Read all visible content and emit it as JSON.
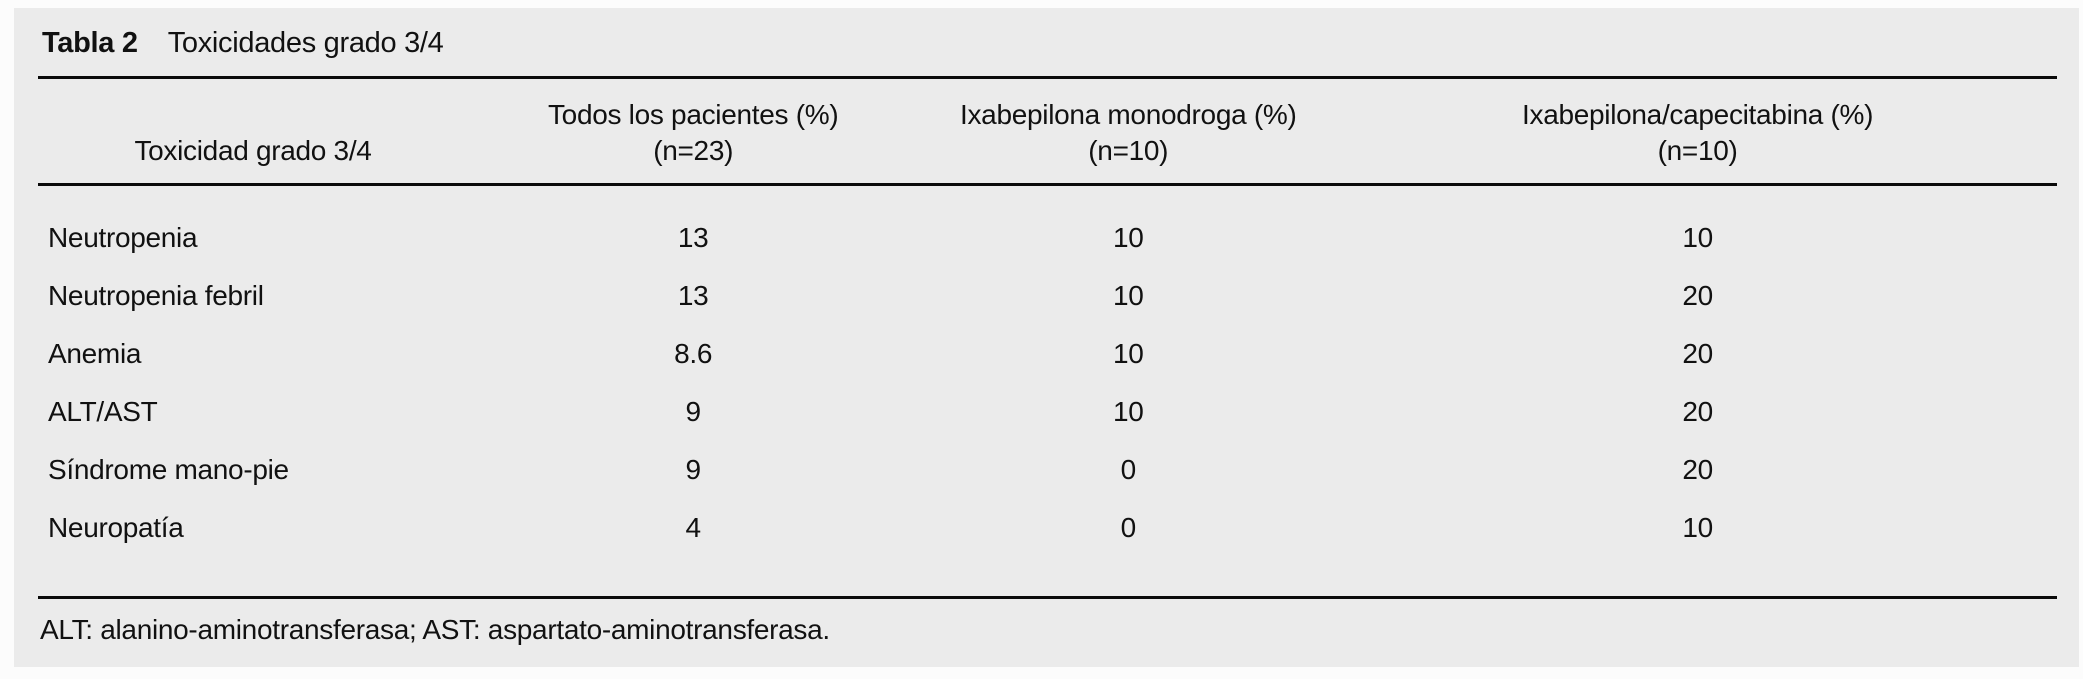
{
  "table": {
    "title_label": "Tabla 2",
    "title_text": "Toxicidades grado 3/4",
    "columns": [
      {
        "line1": "Toxicidad grado 3/4",
        "line2": ""
      },
      {
        "line1": "Todos los pacientes (%)",
        "line2": "(n=23)"
      },
      {
        "line1": "Ixabepilona monodroga (%)",
        "line2": "(n=10)"
      },
      {
        "line1": "Ixabepilona/capecitabina (%)",
        "line2": "(n=10)"
      }
    ],
    "rows": [
      {
        "label": "Neutropenia",
        "values": [
          "13",
          "10",
          "10"
        ]
      },
      {
        "label": "Neutropenia febril",
        "values": [
          "13",
          "10",
          "20"
        ]
      },
      {
        "label": "Anemia",
        "values": [
          "8.6",
          "10",
          "20"
        ]
      },
      {
        "label": "ALT/AST",
        "values": [
          "9",
          "10",
          "20"
        ]
      },
      {
        "label": "Síndrome mano-pie",
        "values": [
          "9",
          "0",
          "20"
        ]
      },
      {
        "label": "Neuropatía",
        "values": [
          "4",
          "0",
          "10"
        ]
      }
    ],
    "footnote": "ALT: alanino-aminotransferasa; AST: aspartato-aminotransferasa."
  },
  "colors": {
    "panel_bg": "#ebebeb",
    "page_bg": "#fcfcfc",
    "text": "#111111",
    "rule": "#0a0a0a"
  }
}
